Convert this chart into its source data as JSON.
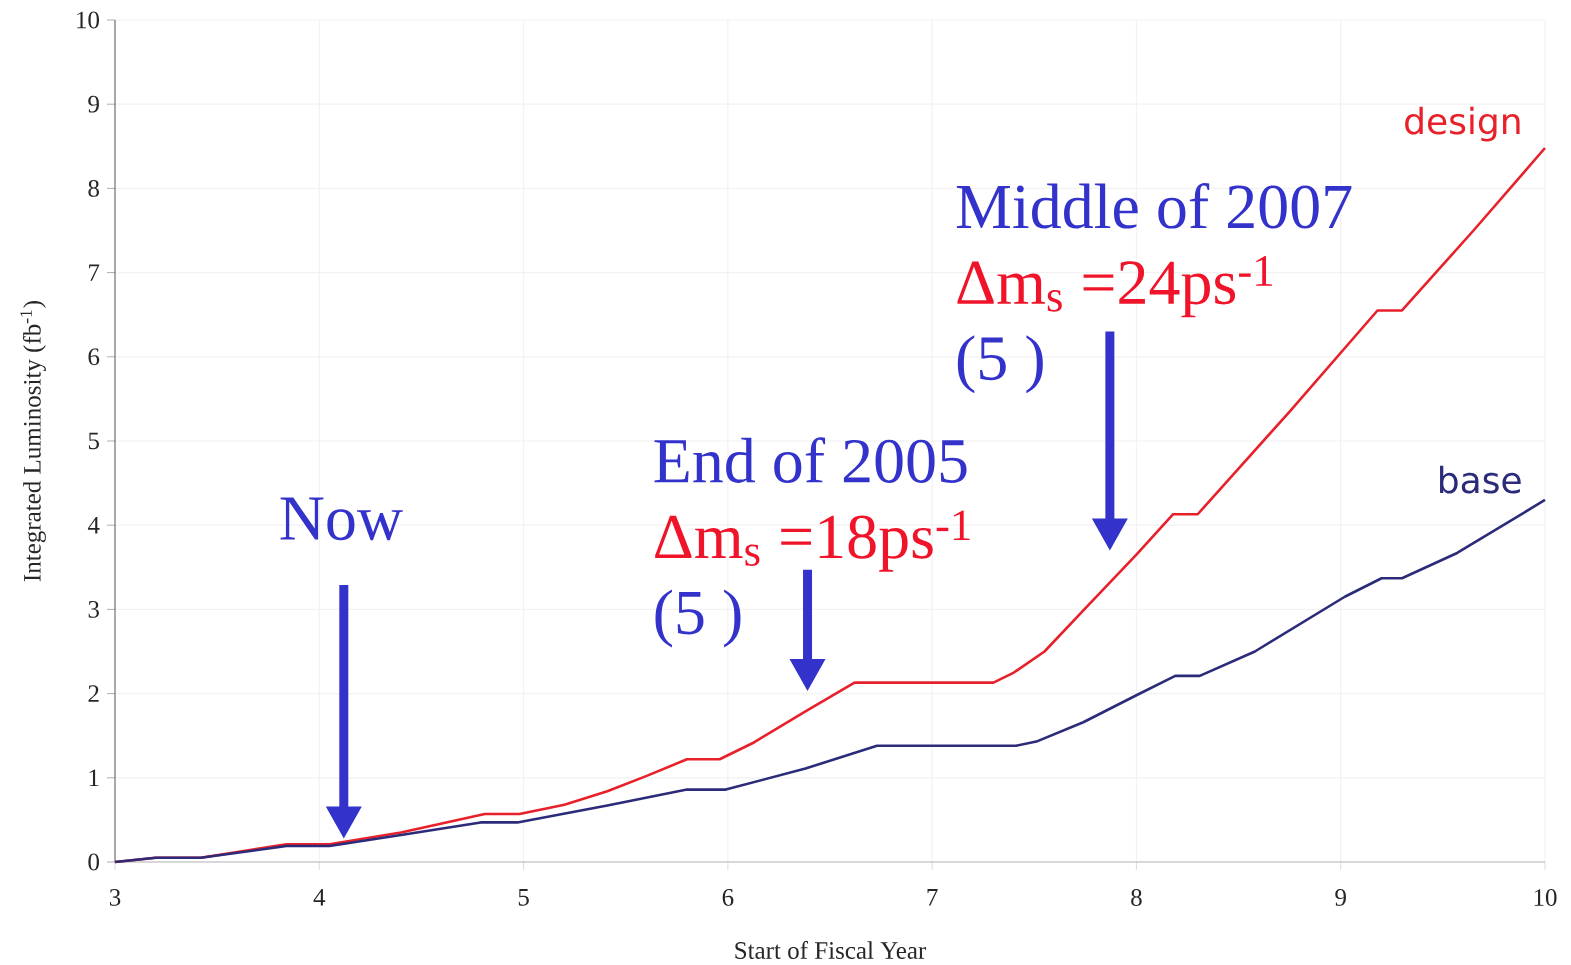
{
  "chart_data": {
    "type": "line",
    "xlabel": "Start of Fiscal Year",
    "ylabel": "Integrated Luminosity (fb$^{-1}$)",
    "xlim": [
      3,
      10
    ],
    "ylim": [
      0,
      10
    ],
    "xticks": [
      3,
      4,
      5,
      6,
      7,
      8,
      9,
      10
    ],
    "yticks": [
      0,
      1,
      2,
      3,
      4,
      5,
      6,
      7,
      8,
      9,
      10
    ],
    "grid": true,
    "line_style": "solid",
    "series": [
      {
        "name": "design",
        "color": "#e8202a",
        "x": [
          3,
          3.2,
          3.42,
          3.84,
          4.05,
          4.4,
          4.81,
          4.98,
          5.2,
          5.41,
          5.6,
          5.8,
          5.96,
          6.12,
          6.38,
          6.62,
          7.3,
          7.4,
          7.55,
          7.76,
          8.0,
          8.18,
          8.3,
          8.75,
          9.18,
          9.3,
          9.65,
          10
        ],
        "values": [
          0,
          0.05,
          0.05,
          0.21,
          0.21,
          0.35,
          0.57,
          0.57,
          0.68,
          0.84,
          1.02,
          1.22,
          1.22,
          1.41,
          1.79,
          2.13,
          2.13,
          2.25,
          2.5,
          3.04,
          3.65,
          4.13,
          4.13,
          5.35,
          6.55,
          6.55,
          7.5,
          8.48
        ]
      },
      {
        "name": "base",
        "color": "#2b2b7a",
        "x": [
          3,
          3.2,
          3.42,
          3.84,
          4.05,
          4.4,
          4.79,
          4.97,
          5.41,
          5.8,
          5.99,
          6.38,
          6.73,
          7.41,
          7.51,
          7.74,
          8.0,
          8.19,
          8.31,
          8.58,
          9.02,
          9.2,
          9.3,
          9.57,
          10
        ],
        "values": [
          0,
          0.05,
          0.05,
          0.19,
          0.19,
          0.32,
          0.47,
          0.47,
          0.67,
          0.86,
          0.86,
          1.11,
          1.38,
          1.38,
          1.43,
          1.66,
          1.98,
          2.21,
          2.21,
          2.5,
          3.15,
          3.37,
          3.37,
          3.67,
          4.3
        ]
      }
    ],
    "annotations": [
      "Now",
      "End of 2005",
      "Δm$_{s}$ =18ps$^{-1}$",
      "(5   )",
      "Middle of 2007",
      "Δm$_{s}$ =24ps$^{-1}$",
      "(5   )"
    ]
  }
}
